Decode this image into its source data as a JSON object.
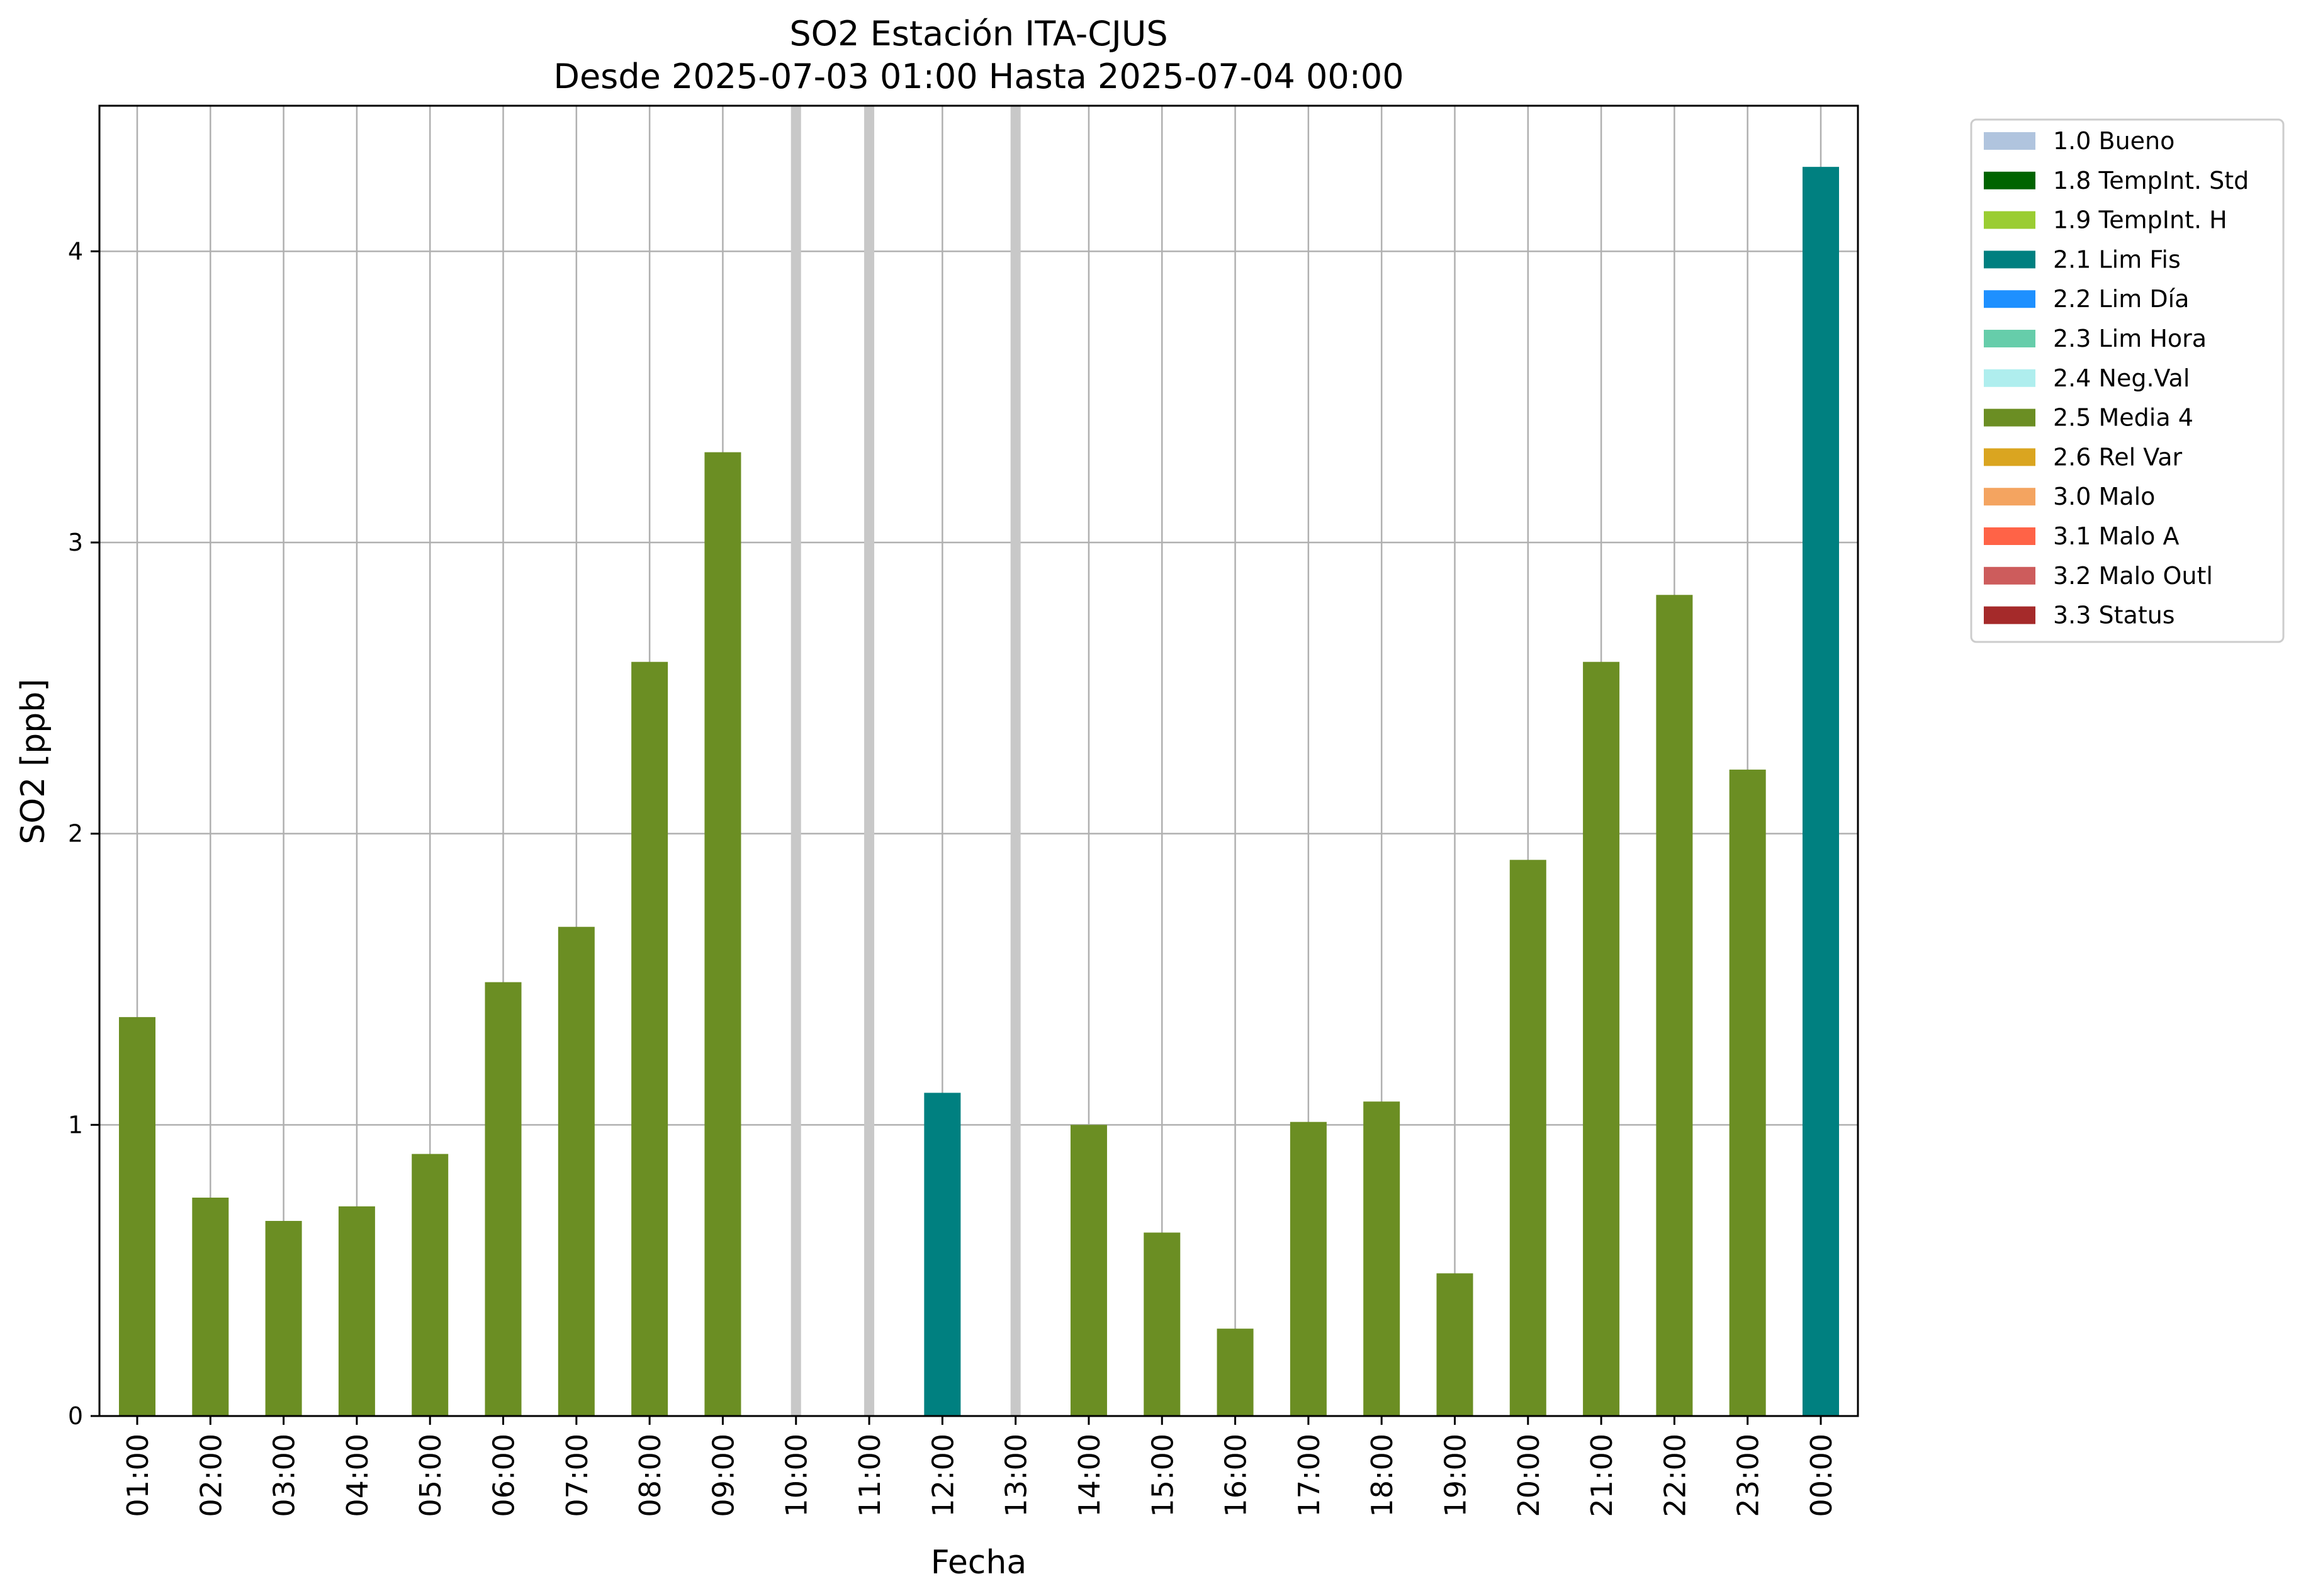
{
  "chart_data": {
    "type": "bar",
    "title": "SO2 Estación ITA-CJUS",
    "subtitle": "Desde 2025-07-03 01:00 Hasta 2025-07-04 00:00",
    "xlabel": "Fecha",
    "ylabel": "SO2 [ppb]",
    "ylim": [
      0,
      4.5
    ],
    "yticks": [
      0,
      1,
      2,
      3,
      4
    ],
    "grid": true,
    "legend_position": "outside-top-right",
    "categories": [
      "01:00",
      "02:00",
      "03:00",
      "04:00",
      "05:00",
      "06:00",
      "07:00",
      "08:00",
      "09:00",
      "10:00",
      "11:00",
      "12:00",
      "13:00",
      "14:00",
      "15:00",
      "16:00",
      "17:00",
      "18:00",
      "19:00",
      "20:00",
      "21:00",
      "22:00",
      "23:00",
      "00:00"
    ],
    "values": [
      1.37,
      0.75,
      0.67,
      0.72,
      0.9,
      1.49,
      1.68,
      2.59,
      3.31,
      null,
      null,
      1.11,
      null,
      1.0,
      0.63,
      0.3,
      1.01,
      1.08,
      0.49,
      1.91,
      2.59,
      2.82,
      2.22,
      4.29
    ],
    "flags": [
      "2.5 Media 4",
      "2.5 Media 4",
      "2.5 Media 4",
      "2.5 Media 4",
      "2.5 Media 4",
      "2.5 Media 4",
      "2.5 Media 4",
      "2.5 Media 4",
      "2.5 Media 4",
      null,
      null,
      "2.1 Lim Fis",
      null,
      "2.5 Media 4",
      "2.5 Media 4",
      "2.5 Media 4",
      "2.5 Media 4",
      "2.5 Media 4",
      "2.5 Media 4",
      "2.5 Media 4",
      "2.5 Media 4",
      "2.5 Media 4",
      "2.5 Media 4",
      "2.1 Lim Fis"
    ],
    "missing_marker_color": "#c8c8c8",
    "legend": [
      {
        "label": "1.0 Bueno",
        "color": "#b0c4de"
      },
      {
        "label": "1.8 TempInt. Std",
        "color": "#006400"
      },
      {
        "label": "1.9 TempInt. H",
        "color": "#9acd32"
      },
      {
        "label": "2.1 Lim Fis",
        "color": "#008080"
      },
      {
        "label": "2.2 Lim Día",
        "color": "#1e90ff"
      },
      {
        "label": "2.3 Lim Hora",
        "color": "#66cdaa"
      },
      {
        "label": "2.4 Neg.Val",
        "color": "#afeeee"
      },
      {
        "label": "2.5 Media 4",
        "color": "#6b8e23"
      },
      {
        "label": "2.6 Rel Var",
        "color": "#daa520"
      },
      {
        "label": "3.0 Malo",
        "color": "#f4a460"
      },
      {
        "label": "3.1 Malo A",
        "color": "#ff6347"
      },
      {
        "label": "3.2 Malo Outl",
        "color": "#cd5c5c"
      },
      {
        "label": "3.3 Status",
        "color": "#a52a2a"
      }
    ]
  }
}
